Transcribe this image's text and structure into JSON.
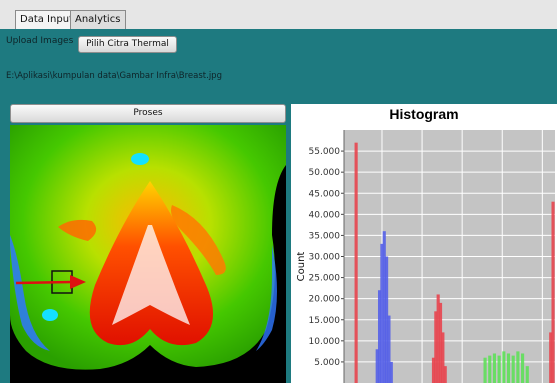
{
  "tabs": [
    {
      "label": "Data Input",
      "active": true
    },
    {
      "label": "Analytics",
      "active": false
    }
  ],
  "upload": {
    "label": "Upload Images",
    "button_label": "Pilih Citra Thermal",
    "file_path": "E:\\Aplikasi\\kumpulan data\\Gambar Infra\\Breast.jpg"
  },
  "process_button_label": "Proses",
  "chart_data": {
    "type": "bar",
    "title": "Histogram",
    "ylabel": "Count",
    "xlabel": "",
    "ylim": [
      0,
      60000
    ],
    "yticks": [
      "5.000",
      "10.000",
      "15.000",
      "20.000",
      "25.000",
      "30.000",
      "35.000",
      "40.000",
      "45.000",
      "50.000",
      "55.000"
    ],
    "grid": true,
    "series": [
      {
        "color": "#e8454f",
        "x": [
          5
        ],
        "values": [
          57000
        ]
      },
      {
        "color": "#5560e8",
        "x": [
          14,
          15,
          16,
          17,
          18,
          19,
          20
        ],
        "values": [
          8000,
          22000,
          33000,
          36000,
          30000,
          16000,
          5000
        ]
      },
      {
        "color": "#e8454f",
        "x": [
          38,
          39,
          40,
          41,
          42,
          43
        ],
        "values": [
          6000,
          17000,
          21000,
          19000,
          12000,
          4000
        ]
      },
      {
        "color": "#5fe05a",
        "x": [
          60,
          62,
          64,
          66,
          68,
          70,
          72,
          74,
          76,
          78
        ],
        "values": [
          6000,
          6500,
          7000,
          6500,
          7500,
          7000,
          6500,
          7500,
          7000,
          4000
        ]
      },
      {
        "color": "#e8454f",
        "x": [
          88,
          89
        ],
        "values": [
          12000,
          43000
        ]
      }
    ]
  },
  "colors": {
    "panel": "#1e7a80",
    "hist_bg": "#c4c4c4",
    "arrow": "#dd1111"
  }
}
